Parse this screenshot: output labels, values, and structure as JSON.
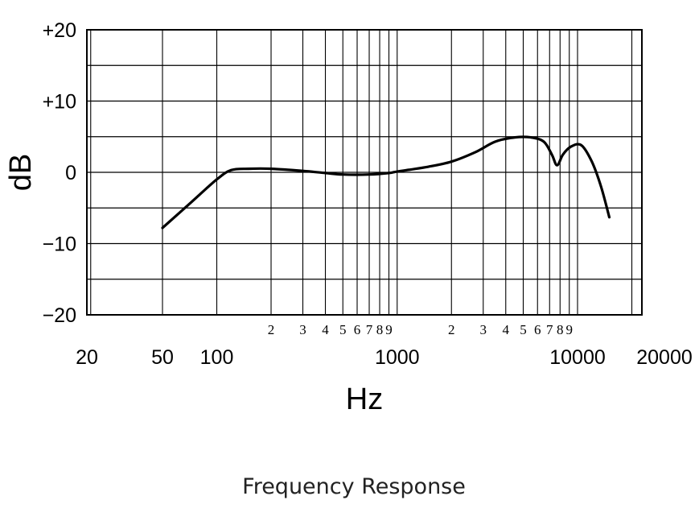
{
  "chart_data": {
    "type": "line",
    "title": "Frequency Response",
    "xlabel": "Hz",
    "ylabel": "dB",
    "x_scale": "log",
    "xlim": [
      20,
      20000
    ],
    "ylim": [
      -20,
      20
    ],
    "grid": true,
    "y_ticks": [
      {
        "value": 20,
        "label": "+20"
      },
      {
        "value": 10,
        "label": "+10"
      },
      {
        "value": 0,
        "label": "0"
      },
      {
        "value": -10,
        "label": "−10"
      },
      {
        "value": -20,
        "label": "−20"
      }
    ],
    "x_major_ticks": [
      {
        "value": 20,
        "label": "20"
      },
      {
        "value": 50,
        "label": "50"
      },
      {
        "value": 100,
        "label": "100"
      },
      {
        "value": 1000,
        "label": "1000"
      },
      {
        "value": 10000,
        "label": "10000"
      },
      {
        "value": 20000,
        "label": "20000"
      }
    ],
    "x_minor_ticks": [
      {
        "value": 200,
        "label": "2"
      },
      {
        "value": 300,
        "label": "3"
      },
      {
        "value": 400,
        "label": "4"
      },
      {
        "value": 500,
        "label": "5"
      },
      {
        "value": 600,
        "label": "6"
      },
      {
        "value": 700,
        "label": "7"
      },
      {
        "value": 800,
        "label": "8"
      },
      {
        "value": 900,
        "label": "9"
      },
      {
        "value": 2000,
        "label": "2"
      },
      {
        "value": 3000,
        "label": "3"
      },
      {
        "value": 4000,
        "label": "4"
      },
      {
        "value": 5000,
        "label": "5"
      },
      {
        "value": 6000,
        "label": "6"
      },
      {
        "value": 7000,
        "label": "7"
      },
      {
        "value": 8000,
        "label": "8"
      },
      {
        "value": 9000,
        "label": "9"
      }
    ],
    "series": [
      {
        "color": "#000000",
        "points": [
          {
            "x": 50,
            "y": -7.8
          },
          {
            "x": 70,
            "y": -4.5
          },
          {
            "x": 100,
            "y": -1.0
          },
          {
            "x": 120,
            "y": 0.3
          },
          {
            "x": 150,
            "y": 0.5
          },
          {
            "x": 200,
            "y": 0.5
          },
          {
            "x": 300,
            "y": 0.2
          },
          {
            "x": 400,
            "y": -0.1
          },
          {
            "x": 500,
            "y": -0.3
          },
          {
            "x": 700,
            "y": -0.3
          },
          {
            "x": 900,
            "y": -0.1
          },
          {
            "x": 1000,
            "y": 0.1
          },
          {
            "x": 1500,
            "y": 0.8
          },
          {
            "x": 2000,
            "y": 1.5
          },
          {
            "x": 2700,
            "y": 2.8
          },
          {
            "x": 3500,
            "y": 4.3
          },
          {
            "x": 4500,
            "y": 4.9
          },
          {
            "x": 5500,
            "y": 4.9
          },
          {
            "x": 6500,
            "y": 4.3
          },
          {
            "x": 7200,
            "y": 2.5
          },
          {
            "x": 7700,
            "y": 1.0
          },
          {
            "x": 8300,
            "y": 2.5
          },
          {
            "x": 9200,
            "y": 3.6
          },
          {
            "x": 10500,
            "y": 3.8
          },
          {
            "x": 12000,
            "y": 1.5
          },
          {
            "x": 13500,
            "y": -2.0
          },
          {
            "x": 15000,
            "y": -6.3
          }
        ]
      }
    ]
  }
}
